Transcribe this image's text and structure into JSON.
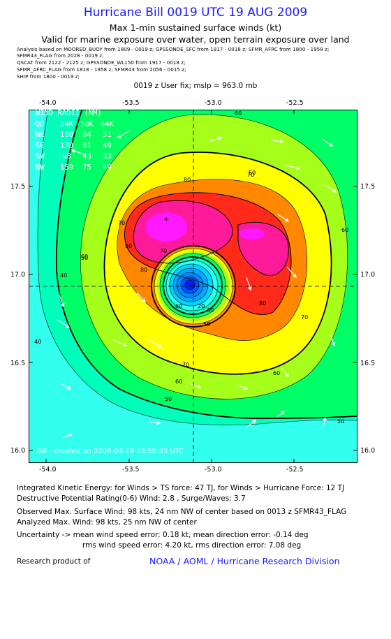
{
  "title": "Hurricane Bill 0019 UTC 19 AUG 2009",
  "subtitle1": "Max 1-min sustained surface winds (kt)",
  "subtitle2": "Valid for marine exposure over water, open terrain exposure over land",
  "analysis_lines": [
    "Analysis based on   MOORED_BUOY from 1809 - 0019 z;   GPSSONDE_SFC from 1917 - 0018 z;   SFMR_AFRC from 1800 - 1958 z;",
    "SFMR43_FLAG from 2028 - 0019 z;",
    "QSCAT from 2122 - 2125 z;   GPSSONDE_WL150 from 1917 - 0018 z;",
    "SFMR_AFRC_FLAG from 1818 - 1958 z;   SFMR43 from 2056 - 0015 z;",
    "SHIP from 1800 - 0019 z;"
  ],
  "fix_line": "0019 z User fix; mslp = 963.0 mb",
  "wind_radii": {
    "header": [
      "WIND RADII (NM)"
    ],
    "columns": [
      "QD",
      "34K",
      "50K",
      "64K"
    ],
    "rows": [
      [
        "NE",
        "180",
        "84",
        "51"
      ],
      [
        "SE",
        "130",
        "81",
        "49"
      ],
      [
        "SW",
        "98",
        "43",
        "33"
      ],
      [
        "NW",
        "159",
        "75",
        "49"
      ]
    ]
  },
  "credit": "Bill - created on 2009-08-19 03:50:03 UTC",
  "footer": {
    "ike": "Integrated Kinetic Energy:  for Winds > TS force: 47 TJ,  for Winds > Hurricane Force: 12 TJ",
    "dpr": "Destructive Potential Rating(0-6)   Wind: 2.8 , Surge/Waves: 3.7",
    "obs": "Observed Max. Surface Wind: 98 kts, 24 nm NW of center based on 0013 z SFMR43_FLAG",
    "analyzed": "Analyzed Max. Wind: 98 kts, 25 nm NW of center",
    "unc1": "Uncertainty -> mean wind speed error: 0.18 kt,   mean direction error:  -0.14 deg",
    "unc2": "rms wind speed error: 4.20 kt,   rms direction error: 7.08 deg",
    "research_label": "Research product of",
    "research_org": "NOAA / AOML / Hurricane Research Division"
  },
  "chart_data": {
    "type": "heatmap",
    "title": "Hurricane Bill 0019 UTC 19 AUG 2009",
    "x_ticks": [
      "-54.0",
      "-53.5",
      "-53.0",
      "-52.5"
    ],
    "y_ticks": [
      "17.5",
      "17.0",
      "16.5",
      "16.0"
    ],
    "xlim": [
      -54.1,
      -52.2
    ],
    "ylim": [
      15.95,
      17.95
    ],
    "center": {
      "lon": -53.08,
      "lat": 16.93
    },
    "max_wind_marker": {
      "lon": -53.23,
      "lat": 17.33
    },
    "contour_labels": [
      "60",
      "70",
      "80",
      "90",
      "50",
      "40",
      "20",
      "30",
      "50",
      "60",
      "70",
      "80",
      "70",
      "60",
      "50",
      "60",
      "70",
      "60",
      "80",
      "70",
      "60",
      "50",
      "40",
      "50"
    ],
    "colors": {
      "cyan": "#33ffee",
      "aqua_green": "#00ffbb",
      "green": "#00ff66",
      "yellow_green": "#a6ff1a",
      "yellow": "#ffff00",
      "orange": "#ff8800",
      "red": "#ff2a1a",
      "magenta": "#ff1a99",
      "bright_magenta": "#ff19ff",
      "eye_blue": "#0088ff"
    }
  }
}
